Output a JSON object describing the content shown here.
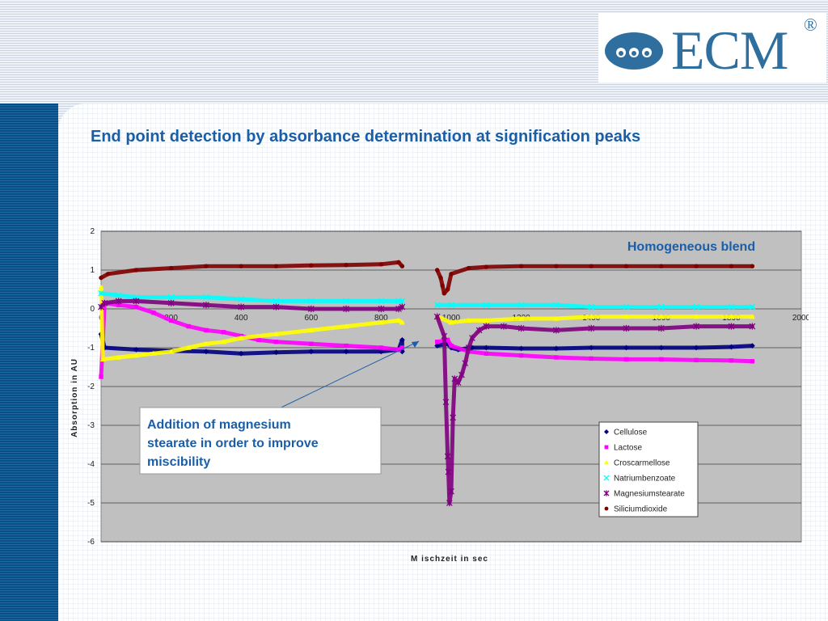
{
  "header": {
    "logo_text": "ECM",
    "logo_registered": "®"
  },
  "slide": {
    "title": "End point detection by absorbance determination at signification peaks"
  },
  "annotations": {
    "homogeneous": "Homogeneous blend",
    "addition": [
      "Addition of magnesium",
      "stearate in order to improve",
      "miscibility"
    ]
  },
  "colors": {
    "title": "#1a5ea8",
    "plot_background": "#c0c0c0",
    "cellulose": "#000080",
    "lactose": "#ff00ff",
    "croscarmellose": "#ffff00",
    "natriumbenzoate": "#00ffff",
    "magnesiumstearate": "#800080",
    "siliciumdioxide": "#800000"
  },
  "chart_data": {
    "type": "scatter",
    "xlabel": "M ischzeit  in sec",
    "ylabel": "Absorption in AU",
    "xlim": [
      0,
      2000
    ],
    "ylim": [
      -6,
      2
    ],
    "x_ticks": [
      0,
      200,
      400,
      600,
      800,
      1000,
      1200,
      1400,
      1600,
      1800,
      2000
    ],
    "y_ticks": [
      2,
      1,
      0,
      -1,
      -2,
      -3,
      -4,
      -5,
      -6
    ],
    "grid": "horizontal",
    "legend_position": "bottom-right",
    "series": [
      {
        "name": "Cellulose",
        "marker": "diamond",
        "segments": [
          [
            [
              0,
              -0.65
            ],
            [
              10,
              -1.0
            ],
            [
              100,
              -1.05
            ],
            [
              200,
              -1.08
            ],
            [
              300,
              -1.1
            ],
            [
              400,
              -1.15
            ],
            [
              500,
              -1.12
            ],
            [
              600,
              -1.1
            ],
            [
              700,
              -1.1
            ],
            [
              800,
              -1.1
            ],
            [
              850,
              -1.05
            ],
            [
              860,
              -0.8
            ],
            [
              860,
              -1.1
            ]
          ],
          [
            [
              960,
              -0.95
            ],
            [
              990,
              -0.9
            ],
            [
              1000,
              -1.0
            ],
            [
              1020,
              -1.05
            ],
            [
              1060,
              -1.0
            ],
            [
              1100,
              -1.0
            ],
            [
              1200,
              -1.02
            ],
            [
              1300,
              -1.02
            ],
            [
              1400,
              -1.0
            ],
            [
              1500,
              -1.0
            ],
            [
              1600,
              -1.0
            ],
            [
              1700,
              -1.0
            ],
            [
              1800,
              -0.98
            ],
            [
              1860,
              -0.95
            ]
          ]
        ]
      },
      {
        "name": "Lactose",
        "marker": "square",
        "segments": [
          [
            [
              0,
              -1.75
            ],
            [
              10,
              0.15
            ],
            [
              50,
              0.1
            ],
            [
              100,
              0.05
            ],
            [
              150,
              -0.1
            ],
            [
              200,
              -0.3
            ],
            [
              250,
              -0.45
            ],
            [
              300,
              -0.55
            ],
            [
              350,
              -0.6
            ],
            [
              400,
              -0.7
            ],
            [
              450,
              -0.8
            ],
            [
              500,
              -0.85
            ],
            [
              600,
              -0.9
            ],
            [
              700,
              -0.95
            ],
            [
              800,
              -1.0
            ],
            [
              850,
              -1.05
            ],
            [
              860,
              -1.0
            ]
          ],
          [
            [
              960,
              -0.85
            ],
            [
              990,
              -0.8
            ],
            [
              1000,
              -0.95
            ],
            [
              1050,
              -1.1
            ],
            [
              1100,
              -1.15
            ],
            [
              1200,
              -1.2
            ],
            [
              1300,
              -1.25
            ],
            [
              1400,
              -1.28
            ],
            [
              1500,
              -1.3
            ],
            [
              1600,
              -1.3
            ],
            [
              1700,
              -1.32
            ],
            [
              1800,
              -1.33
            ],
            [
              1860,
              -1.35
            ]
          ]
        ]
      },
      {
        "name": "Croscarmellose",
        "marker": "triangle",
        "segments": [
          [
            [
              0,
              0.55
            ],
            [
              5,
              -1.3
            ],
            [
              50,
              -1.25
            ],
            [
              100,
              -1.2
            ],
            [
              150,
              -1.15
            ],
            [
              200,
              -1.1
            ],
            [
              250,
              -1.0
            ],
            [
              300,
              -0.9
            ],
            [
              350,
              -0.85
            ],
            [
              400,
              -0.75
            ],
            [
              500,
              -0.65
            ],
            [
              600,
              -0.55
            ],
            [
              700,
              -0.45
            ],
            [
              800,
              -0.35
            ],
            [
              850,
              -0.3
            ],
            [
              860,
              -0.35
            ]
          ],
          [
            [
              960,
              -0.2
            ],
            [
              1000,
              -0.35
            ],
            [
              1050,
              -0.3
            ],
            [
              1100,
              -0.3
            ],
            [
              1200,
              -0.25
            ],
            [
              1300,
              -0.25
            ],
            [
              1400,
              -0.2
            ],
            [
              1500,
              -0.2
            ],
            [
              1600,
              -0.2
            ],
            [
              1700,
              -0.2
            ],
            [
              1800,
              -0.2
            ],
            [
              1860,
              -0.2
            ]
          ]
        ]
      },
      {
        "name": "Natriumbenzoate",
        "marker": "x",
        "segments": [
          [
            [
              0,
              0.4
            ],
            [
              50,
              0.35
            ],
            [
              100,
              0.3
            ],
            [
              200,
              0.3
            ],
            [
              300,
              0.3
            ],
            [
              400,
              0.25
            ],
            [
              500,
              0.2
            ],
            [
              600,
              0.2
            ],
            [
              700,
              0.2
            ],
            [
              800,
              0.2
            ],
            [
              850,
              0.2
            ],
            [
              860,
              0.2
            ]
          ],
          [
            [
              960,
              0.1
            ],
            [
              1000,
              0.1
            ],
            [
              1100,
              0.1
            ],
            [
              1200,
              0.1
            ],
            [
              1300,
              0.1
            ],
            [
              1400,
              0.05
            ],
            [
              1500,
              0.05
            ],
            [
              1600,
              0.05
            ],
            [
              1700,
              0.05
            ],
            [
              1800,
              0.05
            ],
            [
              1860,
              0.05
            ]
          ]
        ]
      },
      {
        "name": "Magnesiumstearate",
        "marker": "star",
        "segments": [
          [
            [
              0,
              0.05
            ],
            [
              10,
              0.15
            ],
            [
              50,
              0.2
            ],
            [
              100,
              0.2
            ],
            [
              200,
              0.15
            ],
            [
              300,
              0.1
            ],
            [
              400,
              0.05
            ],
            [
              500,
              0.05
            ],
            [
              600,
              0.0
            ],
            [
              700,
              0.0
            ],
            [
              800,
              0.0
            ],
            [
              850,
              0.0
            ],
            [
              860,
              0.05
            ]
          ],
          [
            [
              960,
              -0.2
            ],
            [
              980,
              -0.7
            ],
            [
              985,
              -2.4
            ],
            [
              990,
              -3.8
            ],
            [
              992,
              -4.2
            ],
            [
              995,
              -5.0
            ],
            [
              1000,
              -4.7
            ],
            [
              1005,
              -2.8
            ],
            [
              1010,
              -1.8
            ],
            [
              1020,
              -1.9
            ],
            [
              1030,
              -1.7
            ],
            [
              1040,
              -1.4
            ],
            [
              1050,
              -1.0
            ],
            [
              1060,
              -0.75
            ],
            [
              1080,
              -0.55
            ],
            [
              1100,
              -0.45
            ],
            [
              1150,
              -0.45
            ],
            [
              1200,
              -0.5
            ],
            [
              1300,
              -0.55
            ],
            [
              1400,
              -0.5
            ],
            [
              1500,
              -0.5
            ],
            [
              1600,
              -0.5
            ],
            [
              1700,
              -0.45
            ],
            [
              1800,
              -0.45
            ],
            [
              1860,
              -0.45
            ]
          ]
        ]
      },
      {
        "name": "Siliciumdioxide",
        "marker": "circle",
        "segments": [
          [
            [
              0,
              0.8
            ],
            [
              20,
              0.9
            ],
            [
              100,
              1.0
            ],
            [
              200,
              1.05
            ],
            [
              300,
              1.1
            ],
            [
              400,
              1.1
            ],
            [
              500,
              1.1
            ],
            [
              600,
              1.12
            ],
            [
              700,
              1.13
            ],
            [
              800,
              1.15
            ],
            [
              850,
              1.2
            ],
            [
              860,
              1.1
            ]
          ],
          [
            [
              960,
              1.0
            ],
            [
              970,
              0.8
            ],
            [
              975,
              0.6
            ],
            [
              980,
              0.4
            ],
            [
              990,
              0.5
            ],
            [
              1000,
              0.9
            ],
            [
              1050,
              1.05
            ],
            [
              1100,
              1.08
            ],
            [
              1200,
              1.1
            ],
            [
              1300,
              1.1
            ],
            [
              1400,
              1.1
            ],
            [
              1500,
              1.1
            ],
            [
              1600,
              1.1
            ],
            [
              1700,
              1.1
            ],
            [
              1800,
              1.1
            ],
            [
              1860,
              1.1
            ]
          ]
        ]
      }
    ]
  }
}
